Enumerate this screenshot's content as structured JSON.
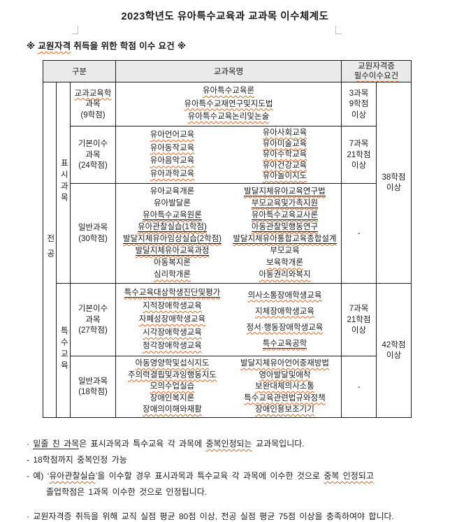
{
  "page": {
    "title": "2023학년도 유아특수교육과 교과목 이수체계도",
    "subtitle": [
      {
        "t": "※ "
      },
      {
        "t": "교원자격",
        "sq": true
      },
      {
        "t": " 취득을 위한 학점 이수 요건 ※"
      }
    ]
  },
  "colors": {
    "squiggle": "#e0641e",
    "header_bg": "#eaeaea",
    "border": "#1a1a1a"
  },
  "table": {
    "headers": {
      "group": "구분",
      "course_name": "교과목명",
      "requirement_lines": [
        {
          "t": "교원자격증"
        },
        {
          "t": "필수이수요건",
          "sq": true
        }
      ]
    },
    "groups": {
      "major": "전공",
      "display_subject": "표시과목",
      "special_education": "특수교육"
    },
    "rows": [
      {
        "category": [
          {
            "t": "교과교육학",
            "sq": true
          },
          {
            "t": "과목"
          },
          {
            "t": "(9학점)"
          }
        ],
        "courses_left": [
          {
            "t": "유아특수교육론",
            "sq": true
          },
          {
            "t": "유아특수교재연구및지도법",
            "sq": true
          },
          {
            "t": "유아특수교육논리및논술",
            "sq": true
          }
        ],
        "requirement": [
          {
            "t": "3과목"
          },
          {
            "t": "9학점"
          },
          {
            "t": "이상"
          }
        ]
      },
      {
        "category": [
          {
            "t": "기본이수"
          },
          {
            "t": "과목"
          },
          {
            "t": "(24학점)"
          }
        ],
        "courses_left": [
          {
            "t": "유아언어교육",
            "sq": true
          },
          {
            "t": "유아동작교육",
            "sq": true
          },
          {
            "t": "유아음악교육",
            "sq": true
          },
          {
            "t": "유아과학교육",
            "sq": true
          }
        ],
        "courses_right": [
          {
            "t": "유아사회교육",
            "sq": true
          },
          {
            "t": "유아미술교육",
            "sq": true
          },
          {
            "t": "유아수학교육",
            "sq": true
          },
          {
            "t": "유아건강교육",
            "sq": true
          },
          {
            "t": "유아놀이지도",
            "sq": true
          }
        ],
        "requirement": [
          {
            "t": "7과목"
          },
          {
            "t": "21학점"
          },
          {
            "t": "이상"
          }
        ]
      },
      {
        "category": [
          {
            "t": "일반과목"
          },
          {
            "t": "(30학점)"
          }
        ],
        "courses_left": [
          {
            "t": "유아교육개론"
          },
          {
            "t": "유아발달론"
          },
          {
            "t": "유아특수교육원론",
            "sq": true,
            "ul": true
          },
          {
            "t": "유아관찰실습(1학점)",
            "sq": true,
            "ul": true
          },
          {
            "t": "발달지체유아임상실습(2학점)",
            "sq": true,
            "ul": true
          },
          {
            "t": "발달지체유아교육과정",
            "sq": true,
            "ul": true
          },
          {
            "t": "아동복지론"
          },
          {
            "t": "심리학개론",
            "sq": true
          }
        ],
        "courses_right": [
          {
            "t": "발달지체유아교육연구법",
            "sq": true,
            "ul": true
          },
          {
            "t": "부모교육및가족지원",
            "sq": true,
            "ul": true
          },
          {
            "t": "유아특수교육교사론",
            "sq": true,
            "ul": true
          },
          {
            "t": "아동관찰및행동연구",
            "sq": true,
            "ul": true
          },
          {
            "t": "발달지체유아통합교육종합설계",
            "sq": true,
            "ul": true
          },
          {
            "t": "부모교육"
          },
          {
            "t": "보육학개론",
            "sq": true
          },
          {
            "t": "아동권리와복지",
            "sq": true
          }
        ],
        "requirement": [
          {
            "t": "-"
          }
        ]
      },
      {
        "category": [
          {
            "t": "기본이수"
          },
          {
            "t": "과목"
          },
          {
            "t": "(27학점)"
          }
        ],
        "courses_left": [
          {
            "t": "특수교육대상학생진단및평가",
            "sq": true,
            "ul": true
          },
          {
            "t": "지적장애학생교육",
            "sq": true
          },
          {
            "t": "자폐성장애학생교육",
            "sq": true
          },
          {
            "t": "시각장애학생교육",
            "sq": true
          },
          {
            "t": "청각장애학생교육",
            "sq": true
          }
        ],
        "courses_right": [
          {
            "t": "의사소통장애학생교육",
            "sq": true
          },
          {
            "t": "지체장애학생교육",
            "sq": true
          },
          {
            "t": "정서·행동장애학생교육",
            "sq": true
          },
          {
            "t": "특수교육공학",
            "sq": true,
            "ul": true
          }
        ],
        "requirement": [
          {
            "t": "7과목"
          },
          {
            "t": "21학점"
          },
          {
            "t": "이상"
          }
        ]
      },
      {
        "category": [
          {
            "t": "일반과목"
          },
          {
            "t": "(18학점)"
          }
        ],
        "courses_left": [
          {
            "t": "아동영양학및섭식지도",
            "sq": true
          },
          {
            "t": "주의력결핍및과잉행동지도",
            "sq": true
          },
          {
            "t": "모의수업실습",
            "sq": true
          },
          {
            "t": "장애인복지론"
          },
          {
            "t": "장애의이해와재활",
            "sq": true
          }
        ],
        "courses_right": [
          {
            "t": "발달지체유아언어중재방법",
            "sq": true
          },
          {
            "t": "영아발달및애착",
            "sq": true
          },
          {
            "t": "보완대체의사소통",
            "sq": true
          },
          {
            "t": "특수교육관련법규와정책",
            "sq": true
          },
          {
            "t": "장애인용보조기기",
            "sq": true
          }
        ],
        "requirement": [
          {
            "t": "-"
          }
        ]
      }
    ],
    "totals": [
      [
        {
          "t": "38학점"
        },
        {
          "t": "이상"
        }
      ],
      [
        {
          "t": "42학점"
        },
        {
          "t": "이상"
        }
      ]
    ]
  },
  "notes": [
    [
      {
        "t": "· "
      },
      {
        "t": "밑줄 친 과목",
        "ul": true
      },
      {
        "t": "은 표시과목과 특수교육 각 과목에 "
      },
      {
        "t": "중복인정되는",
        "sq": true
      },
      {
        "t": " 교과목입니다."
      }
    ],
    [
      {
        "t": "- 18학점까지 중복인정 가능"
      }
    ],
    [
      {
        "t": "- 예) ‘"
      },
      {
        "t": "유아관찰실습",
        "sq": true
      },
      {
        "t": "’을 이수할 경우 표시과목과 특수교육 각 과목에 이수한 것으로 "
      },
      {
        "t": "중복 인정되고",
        "sq": true
      }
    ],
    [
      {
        "t": "졸업학점은 1과목 이수한 것으로 인정됩니다."
      }
    ],
    [
      {
        "t": "· 교원자격증 취득을 위해 교직 실점 평균 80점 이상, 전공 실점 평균 75점 이상을 충족하여야 합니다."
      }
    ]
  ]
}
